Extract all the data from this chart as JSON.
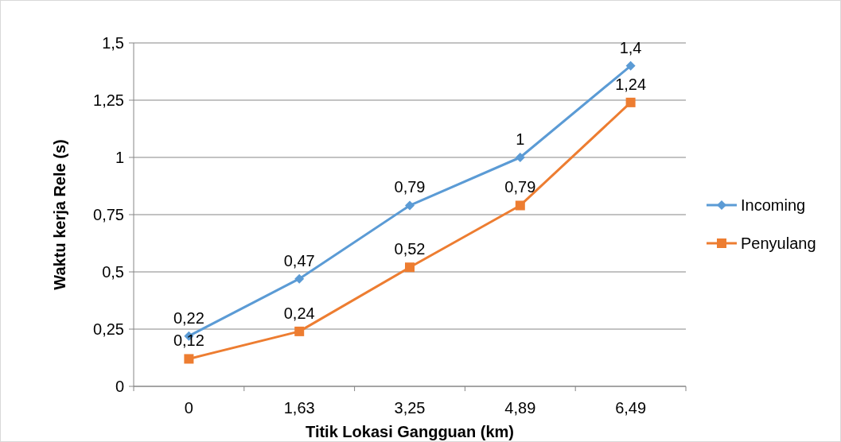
{
  "chart_data": {
    "type": "line",
    "xlabel": "Titik Lokasi Gangguan (km)",
    "ylabel": "Waktu kerja Rele (s)",
    "categories": [
      "0",
      "1,63",
      "3,25",
      "4,89",
      "6,49"
    ],
    "series": [
      {
        "name": "Incoming",
        "color": "#5b9bd5",
        "marker": "diamond",
        "values": [
          0.22,
          0.47,
          0.79,
          1,
          1.4
        ],
        "value_labels": [
          "0,22",
          "0,47",
          "0,79",
          "1",
          "1,4"
        ]
      },
      {
        "name": "Penyulang",
        "color": "#ed7d31",
        "marker": "square",
        "values": [
          0.12,
          0.24,
          0.52,
          0.79,
          1.24
        ],
        "value_labels": [
          "0,12",
          "0,24",
          "0,52",
          "0,79",
          "1,24"
        ]
      }
    ],
    "ylim": [
      0,
      1.5
    ],
    "yticks": [
      0,
      {
        "value": 0.25,
        "label": "0,25"
      },
      {
        "value": 0.5,
        "label": "0,5"
      },
      {
        "value": 0.75,
        "label": "0,75"
      },
      1,
      {
        "value": 1.25,
        "label": "1,25"
      },
      {
        "value": 1.5,
        "label": "1,5"
      }
    ],
    "grid": "y",
    "legend": "right"
  }
}
